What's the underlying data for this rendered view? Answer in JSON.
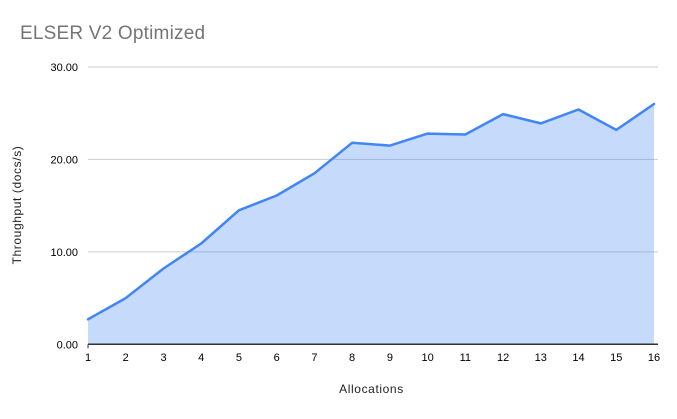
{
  "chart_data": {
    "type": "area",
    "title": "ELSER V2 Optimized",
    "xlabel": "Allocations",
    "ylabel": "Throughput (docs/s)",
    "categories": [
      1,
      2,
      3,
      4,
      5,
      6,
      7,
      8,
      9,
      10,
      11,
      12,
      13,
      14,
      15,
      16
    ],
    "values": [
      2.7,
      5.0,
      8.2,
      10.9,
      14.5,
      16.1,
      18.5,
      21.8,
      21.5,
      22.8,
      22.7,
      24.9,
      23.9,
      25.4,
      23.2,
      26.0
    ],
    "y_ticks": [
      {
        "value": 0,
        "label": "0.00"
      },
      {
        "value": 10,
        "label": "10.00"
      },
      {
        "value": 20,
        "label": "20.00"
      },
      {
        "value": 30,
        "label": "30.00"
      }
    ],
    "ylim": [
      0,
      30
    ],
    "grid": true,
    "legend": "none",
    "colors": {
      "line": "#4285F4",
      "fill": "#4285F4",
      "fill_opacity": "0.3",
      "grid": "#CCCCCC",
      "axis": "#333333",
      "tick_text": "#000000",
      "title_text": "#757575",
      "axis_title_text": "#1F1F1F"
    }
  }
}
